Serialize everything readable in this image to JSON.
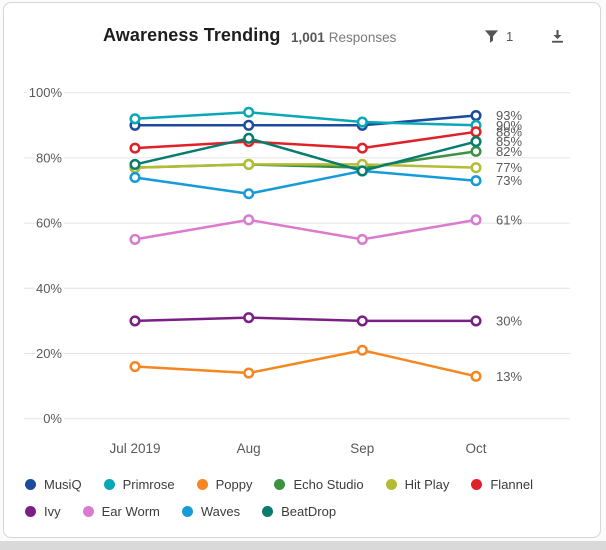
{
  "header": {
    "title": "Awareness Trending",
    "responses_count": "1,001",
    "responses_label": "Responses",
    "filter_count": "1",
    "icons": {
      "filter": "filter-funnel-icon",
      "download": "download-arrow-icon"
    }
  },
  "theme": {
    "card_border": "#d6d6d6",
    "grid": "#e4e4e4",
    "axis_text": "#595959",
    "end_label_text": "#595959",
    "title_text": "#1e1e1e",
    "icon": "#555555",
    "bottom_strip": "#d9d9d9"
  },
  "chart_data": {
    "type": "line",
    "title": "Awareness Trending",
    "categories": [
      "Jul 2019",
      "Aug",
      "Sep",
      "Oct"
    ],
    "series": [
      {
        "name": "MusiQ",
        "color": "#1b4c9b",
        "values": [
          90,
          90,
          90,
          93
        ],
        "end_label": "93%"
      },
      {
        "name": "Primrose",
        "color": "#09a8b7",
        "values": [
          92,
          94,
          91,
          90
        ],
        "end_label": "90%"
      },
      {
        "name": "Poppy",
        "color": "#f6861f",
        "values": [
          16,
          14,
          21,
          13
        ],
        "end_label": "13%"
      },
      {
        "name": "Echo Studio",
        "color": "#3d9142",
        "values": [
          77,
          78,
          77,
          82
        ],
        "end_label": "82%"
      },
      {
        "name": "Hit Play",
        "color": "#b3bc35",
        "values": [
          77,
          78,
          78,
          77
        ],
        "end_label": "77%"
      },
      {
        "name": "Flannel",
        "color": "#e02127",
        "values": [
          83,
          85,
          83,
          88
        ],
        "end_label": "88%"
      },
      {
        "name": "Ivy",
        "color": "#7a2084",
        "values": [
          30,
          31,
          30,
          30
        ],
        "end_label": "30%"
      },
      {
        "name": "Ear Worm",
        "color": "#d97ccf",
        "values": [
          55,
          61,
          55,
          61
        ],
        "end_label": "61%"
      },
      {
        "name": "Waves",
        "color": "#169bd8",
        "values": [
          74,
          69,
          76,
          73
        ],
        "end_label": "73%"
      },
      {
        "name": "BeatDrop",
        "color": "#077c6d",
        "values": [
          78,
          86,
          76,
          85
        ],
        "end_label": "85%"
      }
    ],
    "xlabel": "",
    "ylabel": "",
    "ylim": [
      0,
      100
    ],
    "y_ticks": [
      "0%",
      "20%",
      "40%",
      "60%",
      "80%",
      "100%"
    ],
    "grid": "horizontal",
    "legend_position": "bottom",
    "legend_rows": [
      6,
      4
    ],
    "marker": "hollow-circle"
  }
}
